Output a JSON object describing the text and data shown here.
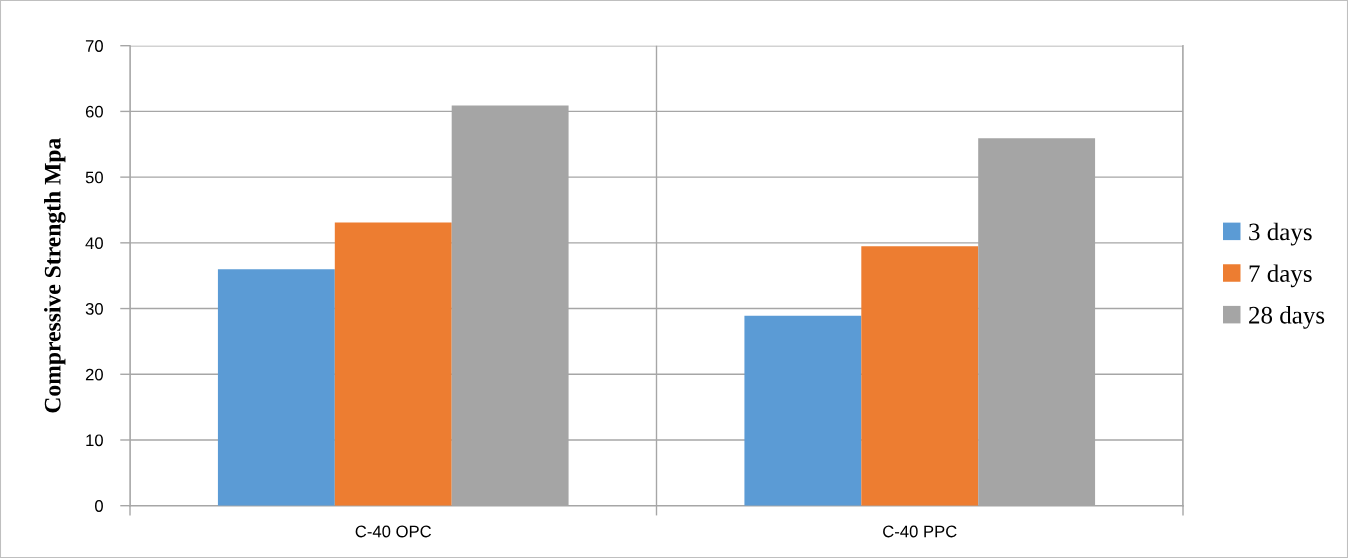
{
  "chart_data": {
    "type": "bar",
    "categories": [
      "C-40 OPC",
      "C-40 PPC"
    ],
    "series": [
      {
        "name": "3 days",
        "color": "#5b9bd5",
        "values": [
          36.0,
          28.9
        ]
      },
      {
        "name": "7 days",
        "color": "#ed7d31",
        "values": [
          43.1,
          39.5
        ]
      },
      {
        "name": "28 days",
        "color": "#a5a5a5",
        "values": [
          60.9,
          55.9
        ]
      }
    ],
    "ylabel": "Compressive Strength Mpa",
    "ylim": [
      0,
      70
    ],
    "yticks": [
      0,
      10,
      20,
      30,
      40,
      50,
      60,
      70
    ],
    "grid": true,
    "legend": "right"
  }
}
